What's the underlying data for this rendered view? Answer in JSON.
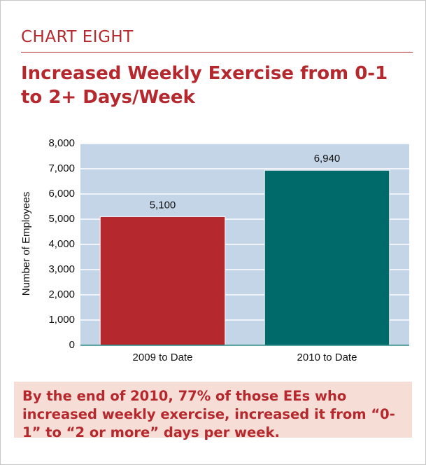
{
  "header": {
    "kicker": "CHART EIGHT"
  },
  "chart_data": {
    "type": "bar",
    "title": "Increased Weekly Exercise from 0-1 to 2+ Days/Week",
    "y_label": "Number of Employees",
    "categories": [
      "2009 to Date",
      "2010 to Date"
    ],
    "series": [
      {
        "name": "Employees",
        "colors": [
          "#b5282e",
          "#006a6a"
        ],
        "values": [
          5100,
          6940
        ],
        "value_labels": [
          "5,100",
          "6,940"
        ]
      }
    ],
    "ylim": [
      0,
      8000
    ],
    "yticks": [
      0,
      {
        "value": 1000,
        "label": "1,000"
      },
      {
        "value": 2000,
        "label": "2,000"
      },
      {
        "value": 3000,
        "label": "3,000"
      },
      {
        "value": 4000,
        "label": "4,000"
      },
      {
        "value": 5000,
        "label": "5,000"
      },
      {
        "value": 6000,
        "label": "6,000"
      },
      {
        "value": 7000,
        "label": "7,000"
      },
      {
        "value": 8000,
        "label": "8,000"
      }
    ],
    "grid": true,
    "plot_background": "#c5d5e8"
  },
  "note": "By the end of 2010, 77% of those EEs who increased weekly exercise, increased it from “0-1” to “2 or more” days per week."
}
